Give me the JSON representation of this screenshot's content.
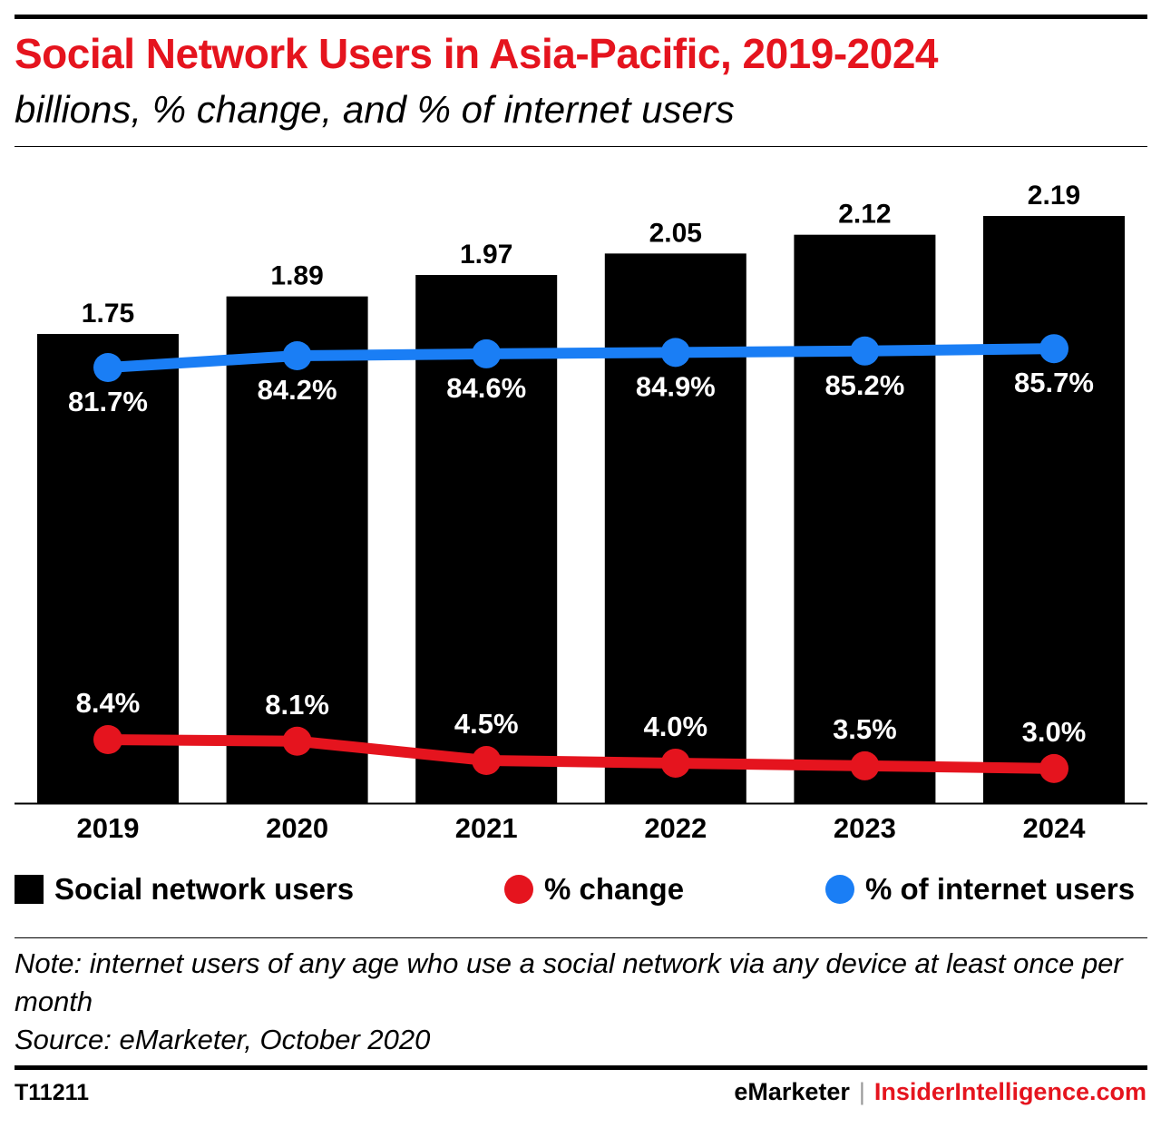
{
  "header": {
    "title": "Social Network Users in Asia-Pacific, 2019-2024",
    "subtitle": "billions, % change, and % of internet users"
  },
  "colors": {
    "title": "#e5141e",
    "bars": "#000000",
    "pct_change_line": "#e5141e",
    "pct_internet_line": "#1a7ef5"
  },
  "legend": {
    "social_network_users": "Social network users",
    "pct_change": "% change",
    "pct_internet_users": "% of internet users"
  },
  "note": {
    "line1": "Note: internet users of any age who use a social network via any device at least once per month",
    "line2": "Source: eMarketer, October 2020"
  },
  "footer": {
    "id": "T11211",
    "brand_left": "eMarketer",
    "separator": "|",
    "brand_right": "InsiderIntelligence.com"
  },
  "chart_data": {
    "type": "bar",
    "categories": [
      "2019",
      "2020",
      "2021",
      "2022",
      "2023",
      "2024"
    ],
    "series": [
      {
        "name": "Social network users",
        "type": "bar",
        "values": [
          1.75,
          1.89,
          1.97,
          2.05,
          2.12,
          2.19
        ],
        "labels": [
          "1.75",
          "1.89",
          "1.97",
          "2.05",
          "2.12",
          "2.19"
        ]
      },
      {
        "name": "% change",
        "type": "line",
        "values": [
          8.4,
          8.1,
          4.5,
          4.0,
          3.5,
          3.0
        ],
        "labels": [
          "8.4%",
          "8.1%",
          "4.5%",
          "4.0%",
          "3.5%",
          "3.0%"
        ]
      },
      {
        "name": "% of internet users",
        "type": "line",
        "values": [
          81.7,
          84.2,
          84.6,
          84.9,
          85.2,
          85.7
        ],
        "labels": [
          "81.7%",
          "84.2%",
          "84.6%",
          "84.9%",
          "85.2%",
          "85.7%"
        ]
      }
    ],
    "ylim": [
      0,
      2.19
    ],
    "grid": false,
    "legend_position": "bottom"
  }
}
